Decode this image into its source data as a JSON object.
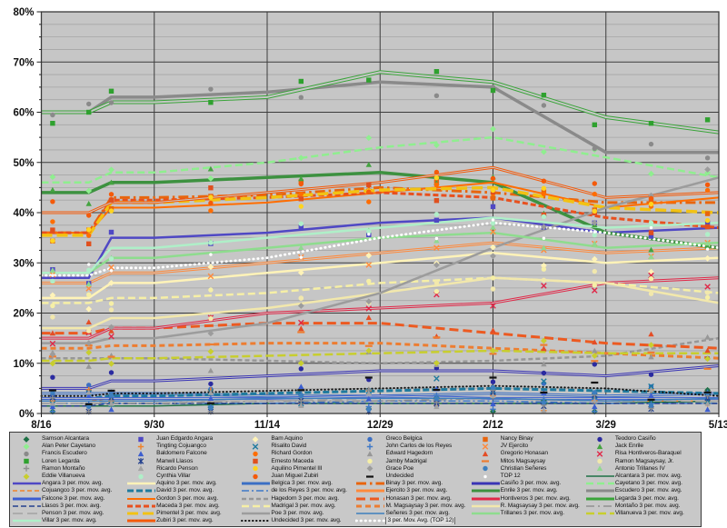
{
  "chart": {
    "plot_bg": "#c6c6c6",
    "grid_minor_color": "#a6a6a6",
    "grid_major_color": "#3c3c3c",
    "border_color": "#3a3a3a",
    "y_ticks": [
      "0%",
      "10%",
      "20%",
      "30%",
      "40%",
      "50%",
      "60%",
      "70%",
      "80%"
    ],
    "x_ticks": [
      "8/16",
      "9/30",
      "11/14",
      "12/29",
      "2/12",
      "3/29",
      "5/13"
    ],
    "y_minor_step": 2.5,
    "y_major_step": 10
  },
  "legend": {
    "selected": "3 per. Mov. Avg. (TOP 12)"
  },
  "chart_data": {
    "type": "line",
    "x": [
      "8/16",
      "9/30",
      "11/14",
      "12/29",
      "2/12",
      "3/29",
      "5/13"
    ],
    "ylim": [
      0,
      80
    ],
    "grid": true,
    "legend_position": "bottom",
    "series": [
      {
        "key": "alcantara",
        "candidate": "Samson Alcantara",
        "avg_label": "Alcantara 3 per. mov. avg.",
        "color": "#1e7145",
        "marker": "diamond",
        "mcolor": "#1e7145",
        "dasharray": "",
        "cap": "butt",
        "w": 1.5,
        "double": false,
        "values": [
          1.5,
          1.5,
          2,
          2,
          2,
          2,
          2.5
        ]
      },
      {
        "key": "angara",
        "candidate": "Juan Edgardo Angara",
        "avg_label": "Angara 3 per. mov. avg.",
        "color": "#4f48c4",
        "marker": "square",
        "mcolor": "#4f48c4",
        "dasharray": "",
        "cap": "butt",
        "w": 2.5,
        "double": false,
        "values": [
          27,
          35,
          36,
          38,
          39,
          36,
          37
        ]
      },
      {
        "key": "aquino",
        "candidate": "Bam Aquino",
        "avg_label": "Aquino 3 per. mov. avg.",
        "color": "#fff3b8",
        "marker": "diamond",
        "mcolor": "#fff3b8",
        "dasharray": "",
        "cap": "butt",
        "w": 2.5,
        "double": false,
        "values": [
          23,
          26,
          28,
          30,
          32,
          30,
          31
        ]
      },
      {
        "key": "belgica",
        "candidate": "Greco Belgica",
        "avg_label": "Belgica 3 per. mov. avg.",
        "color": "#3b6fc4",
        "marker": "circle",
        "mcolor": "#3b6fc4",
        "dasharray": "",
        "cap": "butt",
        "w": 3,
        "double": true,
        "values": [
          4,
          4,
          3.5,
          3.5,
          4,
          3.5,
          4
        ]
      },
      {
        "key": "binay",
        "candidate": "Nancy Binay",
        "avg_label": "Binay 3 per. mov. avg.",
        "color": "#e8650d",
        "marker": "square",
        "mcolor": "#e8650d",
        "dasharray": "11,4,2.5,4",
        "cap": "butt",
        "w": 3,
        "double": false,
        "values": [
          36,
          43,
          43.5,
          45,
          44,
          42,
          42
        ]
      },
      {
        "key": "casino",
        "candidate": "Teodoro Casiño",
        "avg_label": "Casiño 3 per. mov. avg.",
        "color": "#3a35b5",
        "marker": "circle",
        "mcolor": "#2b2ba0",
        "dasharray": "",
        "cap": "butt",
        "w": 3,
        "double": true,
        "values": [
          5,
          6.5,
          7.5,
          8.5,
          8.5,
          7.5,
          9.5
        ]
      },
      {
        "key": "cayetano",
        "candidate": "Alan Peter Cayetano",
        "avg_label": "Cayetano 3 per. mov. avg.",
        "color": "#8fee8f",
        "marker": "diamond",
        "mcolor": "#8fee8f",
        "dasharray": "8,4",
        "cap": "butt",
        "w": 2.5,
        "double": false,
        "values": [
          46,
          48,
          50,
          53,
          55,
          51,
          47
        ]
      },
      {
        "key": "cojuangco",
        "candidate": "Tingting Cojuangco",
        "avg_label": "Cojuangco 3 per. mov. avg.",
        "color": "#f08228",
        "marker": "plus",
        "mcolor": "#f08228",
        "dasharray": "5,3",
        "cap": "butt",
        "w": 1.5,
        "double": false,
        "values": [
          2.5,
          3,
          3,
          3.5,
          3,
          2.5,
          2.5
        ]
      },
      {
        "key": "david",
        "candidate": "Risalito David",
        "avg_label": "David 3 per. mov. avg.",
        "color": "#1f7a9e",
        "marker": "x",
        "mcolor": "#1f7a9e",
        "dasharray": "7,3",
        "cap": "butt",
        "w": 3,
        "double": false,
        "values": [
          3,
          3.5,
          4,
          4.5,
          5,
          4.5,
          4
        ]
      },
      {
        "key": "delosreyes",
        "candidate": "John Carlos de los Reyes",
        "avg_label": "de los Reyes 3 per. mov. avg.",
        "color": "#3e79c8",
        "marker": "plus",
        "mcolor": "#3e79c8",
        "dasharray": "8,3,2,3",
        "cap": "butt",
        "w": 1.5,
        "double": false,
        "values": [
          2,
          2,
          2,
          2.5,
          2.5,
          2,
          2
        ]
      },
      {
        "key": "ejercito",
        "candidate": "JV Ejercito",
        "avg_label": "Ejercito 3 per. mov. avg.",
        "color": "#ff8a3c",
        "marker": "x",
        "mcolor": "#ff8a3c",
        "dasharray": "",
        "cap": "butt",
        "w": 3,
        "double": true,
        "values": [
          26,
          28,
          30,
          32,
          34,
          32,
          33
        ]
      },
      {
        "key": "enrile",
        "candidate": "Jack Enrile",
        "avg_label": "Enrile 3 per. mov. avg.",
        "color": "#3d9140",
        "marker": "triangle",
        "mcolor": "#44a340",
        "dasharray": "",
        "cap": "butt",
        "w": 3.5,
        "double": false,
        "values": [
          44,
          46,
          47,
          48,
          46,
          36,
          33
        ]
      },
      {
        "key": "escudero",
        "candidate": "Francis Escudero",
        "avg_label": "Escudero 3 per. mov. avg.",
        "color": "#8a8a8a",
        "marker": "circle",
        "mcolor": "#8a8a8a",
        "dasharray": "",
        "cap": "butt",
        "w": 3.5,
        "double": false,
        "values": [
          60,
          63,
          64,
          66,
          65,
          52,
          52
        ]
      },
      {
        "key": "falcone",
        "candidate": "Baldomero Falcone",
        "avg_label": "Falcone 3 per. mov. avg.",
        "color": "#3c5ed0",
        "marker": "triangle",
        "mcolor": "#3c5ed0",
        "dasharray": "",
        "cap": "butt",
        "w": 3,
        "double": true,
        "values": [
          3,
          3,
          3,
          3.5,
          3,
          3,
          3
        ]
      },
      {
        "key": "gordon",
        "candidate": "Richard Gordon",
        "avg_label": "Gordon 3 per. mov. avg.",
        "color": "#ff6d00",
        "marker": "circle",
        "mcolor": "#ff6d00",
        "dasharray": "",
        "cap": "butt",
        "w": 2,
        "double": false,
        "values": [
          36,
          41,
          42,
          44,
          46,
          41,
          43
        ]
      },
      {
        "key": "hagedorn",
        "candidate": "Edward Hagedorn",
        "avg_label": "Hagedorn 3 per. mov. avg.",
        "color": "#979797",
        "marker": "triangle",
        "mcolor": "#979797",
        "dasharray": "5,3",
        "cap": "butt",
        "w": 2.5,
        "double": false,
        "values": [
          11,
          11,
          10.5,
          10,
          10.5,
          11.5,
          15
        ]
      },
      {
        "key": "honasan",
        "candidate": "Gregorio Honasan",
        "avg_label": "Honasan 3 per. mov. avg.",
        "color": "#ec5a21",
        "marker": "triangle",
        "mcolor": "#e44d26",
        "dasharray": "10,5",
        "cap": "butt",
        "w": 3,
        "double": false,
        "values": [
          16,
          17,
          18,
          18,
          16,
          14,
          13
        ]
      },
      {
        "key": "hontiveros",
        "candidate": "Risa Hontiveros-Baraquel",
        "avg_label": "Hontiveros 3 per. mov. avg.",
        "color": "#e02848",
        "marker": "x",
        "mcolor": "#e02848",
        "dasharray": "",
        "cap": "butt",
        "w": 3,
        "double": true,
        "values": [
          15,
          17,
          20,
          21,
          22,
          26,
          27
        ]
      },
      {
        "key": "legarda",
        "candidate": "Loren Legarda",
        "avg_label": "Legarda 3 per. mov. avg.",
        "color": "#3aa43a",
        "marker": "square",
        "mcolor": "#2fa12f",
        "dasharray": "",
        "cap": "butt",
        "w": 4,
        "double": true,
        "values": [
          60,
          62,
          63,
          68,
          66,
          59,
          56
        ]
      },
      {
        "key": "llasos",
        "candidate": "Manwil Llasos",
        "avg_label": "Llasos 3 per. mov. avg.",
        "color": "#24418e",
        "marker": "asterisk",
        "mcolor": "#24418e",
        "dasharray": "6,3",
        "cap": "butt",
        "w": 1.5,
        "double": false,
        "values": [
          1.5,
          2,
          2,
          2,
          2,
          2,
          2
        ]
      },
      {
        "key": "maceda",
        "candidate": "Ernesto Maceda",
        "avg_label": "Maceda 3 per. mov. avg.",
        "color": "#e8501e",
        "marker": "square",
        "mcolor": "#e0501e",
        "dasharray": "6,3",
        "cap": "butt",
        "w": 3,
        "double": false,
        "values": [
          36,
          42.5,
          43,
          44,
          43,
          39,
          37
        ]
      },
      {
        "key": "madrigal",
        "candidate": "Jamby Madrigal",
        "avg_label": "Madrigal 3 per. mov. avg.",
        "color": "#f6efa6",
        "marker": "circle",
        "mcolor": "#f6efa6",
        "dasharray": "8,4",
        "cap": "butt",
        "w": 2.5,
        "double": false,
        "values": [
          22,
          23,
          24,
          26,
          27,
          26,
          24
        ]
      },
      {
        "key": "mmagsaysay",
        "candidate": "Mitos Magsaysay",
        "avg_label": "M. Magsaysay 3 per. mov. avg.",
        "color": "#ed7d31",
        "marker": "dash",
        "mcolor": "#ed7d31",
        "dasharray": "6,4",
        "cap": "butt",
        "w": 3,
        "double": false,
        "values": [
          13,
          13.5,
          14,
          14,
          13,
          12,
          11
        ]
      },
      {
        "key": "rmagsaysay",
        "candidate": "Ramon Magsaysay, Jr.",
        "avg_label": "R. Magsaysay 3 per. mov. avg.",
        "color": "#f2e8ac",
        "marker": "circle",
        "mcolor": "#f2e8ac",
        "dasharray": "",
        "cap": "butt",
        "w": 2.5,
        "double": false,
        "values": [
          17,
          19,
          21,
          24,
          27,
          26,
          22
        ]
      },
      {
        "key": "montano",
        "candidate": "Ramon Montaño",
        "avg_label": "Montaño 3 per. mov. avg.",
        "color": "#8f8f8f",
        "marker": "plus",
        "mcolor": "#8f8f8f",
        "dasharray": "9,4,2,4",
        "cap": "butt",
        "w": 1.5,
        "double": false,
        "values": [
          2,
          2,
          2.5,
          2.5,
          3,
          2.5,
          3
        ]
      },
      {
        "key": "penson",
        "candidate": "Ricardo Penson",
        "avg_label": "Penson 3 per. mov. avg.",
        "color": "#a3a3a3",
        "marker": "triangle",
        "mcolor": "#a3a3a3",
        "dasharray": "11,5",
        "cap": "butt",
        "w": 1.5,
        "double": false,
        "values": [
          2,
          2.5,
          2.5,
          3,
          3,
          2.5,
          2.5
        ]
      },
      {
        "key": "pimentel",
        "candidate": "Aquilino Pimentel III",
        "avg_label": "Pimentel 3 per. mov. avg.",
        "color": "#f2c213",
        "marker": "circle",
        "mcolor": "#ffd41e",
        "dasharray": "12,5",
        "cap": "butt",
        "w": 3.5,
        "double": false,
        "values": [
          35.5,
          42,
          43,
          44.5,
          45,
          41,
          40
        ]
      },
      {
        "key": "poe",
        "candidate": "Grace Poe",
        "avg_label": "Poe 3 per. mov. avg.",
        "color": "#9c9c9c",
        "marker": "diamond",
        "mcolor": "#9c9c9c",
        "dasharray": "",
        "cap": "butt",
        "w": 2.5,
        "double": false,
        "values": [
          14,
          15,
          18,
          24,
          33,
          41,
          47
        ]
      },
      {
        "key": "seneres",
        "candidate": "Christian Señeres",
        "avg_label": "Señeres 3 per. mov. avg.",
        "color": "#3e7fbe",
        "marker": "circle",
        "mcolor": "#3e7fbe",
        "dasharray": "",
        "cap": "butt",
        "w": 1.5,
        "double": false,
        "values": [
          2.5,
          2.5,
          3,
          3,
          3,
          2.5,
          3
        ]
      },
      {
        "key": "trillanes",
        "candidate": "Antonio Trillanes IV",
        "avg_label": "Trillanes 3 per. mov. avg.",
        "color": "#8edc8e",
        "marker": "triangle",
        "mcolor": "#90d890",
        "dasharray": "",
        "cap": "butt",
        "w": 2.5,
        "double": false,
        "values": [
          28,
          31,
          33,
          35,
          36,
          33,
          34
        ]
      },
      {
        "key": "villanueva",
        "candidate": "Eddie Villanueva",
        "avg_label": "Villanueva 3 per. mov. avg.",
        "color": "#c8ce2e",
        "marker": "diamond",
        "mcolor": "#c8ce2e",
        "dasharray": "9,4",
        "cap": "butt",
        "w": 2.5,
        "double": false,
        "values": [
          10.5,
          11,
          11.5,
          12,
          12.5,
          12,
          12
        ]
      },
      {
        "key": "villar",
        "candidate": "Cynthia Villar",
        "avg_label": "Villar 3 per. mov. avg.",
        "color": "#afefc8",
        "marker": "circle",
        "mcolor": "#afefc8",
        "dasharray": "",
        "cap": "butt",
        "w": 2.5,
        "double": false,
        "values": [
          28,
          33,
          35,
          37,
          39,
          37,
          38
        ]
      },
      {
        "key": "zubiri",
        "candidate": "Juan Miguel Zubiri",
        "avg_label": "Zubiri 3 per. mov. avg.",
        "color": "#f45a0a",
        "marker": "circle",
        "mcolor": "#f45a0a",
        "dasharray": "",
        "cap": "butt",
        "w": 3,
        "double": true,
        "values": [
          40,
          42,
          44,
          46,
          49,
          43,
          44
        ]
      },
      {
        "key": "undecided",
        "candidate": "Undecided",
        "avg_label": "Undecided 3 per. mov. avg.",
        "color": "#111111",
        "marker": "dash",
        "mcolor": "#111111",
        "dasharray": "0.5,3.5",
        "cap": "round",
        "w": 2,
        "double": false,
        "values": [
          3.5,
          4,
          4.5,
          5,
          5.5,
          5,
          3.5
        ]
      },
      {
        "key": "top12",
        "candidate": "TOP 12",
        "avg_label": "3 per. Mov. Avg. (TOP 12)",
        "color": "#ffffff",
        "marker": "dot",
        "mcolor": "#ffffff",
        "dasharray": "0.5,4.5",
        "cap": "round",
        "w": 2.8,
        "double": false,
        "values": [
          27.5,
          29,
          31,
          35,
          38,
          36,
          33
        ]
      }
    ]
  }
}
